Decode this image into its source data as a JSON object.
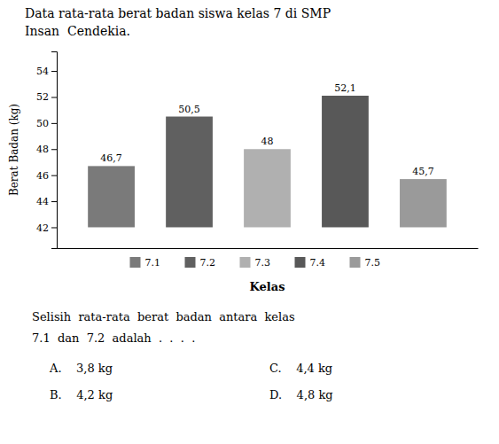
{
  "chart_data": {
    "type": "bar",
    "title": "Data rata-rata berat badan siswa kelas 7 di SMP",
    "subtitle": "Insan  Cendekia.",
    "categories": [
      "7.1",
      "7.2",
      "7.3",
      "7.4",
      "7.5"
    ],
    "values": [
      46.7,
      50.5,
      48.0,
      52.1,
      45.7
    ],
    "value_labels": [
      "46,7",
      "50,5",
      "48",
      "52,1",
      "45,7"
    ],
    "data_labels": true,
    "colors": [
      "#7a7a7a",
      "#606060",
      "#b0b0b0",
      "#585858",
      "#9a9a9a"
    ],
    "y_label": "Berat Badan (kg)",
    "x_label": "Kelas",
    "ylim": [
      40.4,
      55.5
    ],
    "yticks": [
      42,
      44,
      46,
      48,
      50,
      52,
      54
    ],
    "grid": false,
    "legend": "bottom",
    "tick_labels": "y",
    "annotations": [
      "Selisih  rata-rata  berat  badan  antara  kelas",
      "7.1  dan  7.2  adalah  .  .  .  .",
      "A.    3,8 kg",
      "B.    4,2 kg",
      "C.    4,4 kg",
      "D.    4,8 kg"
    ]
  }
}
